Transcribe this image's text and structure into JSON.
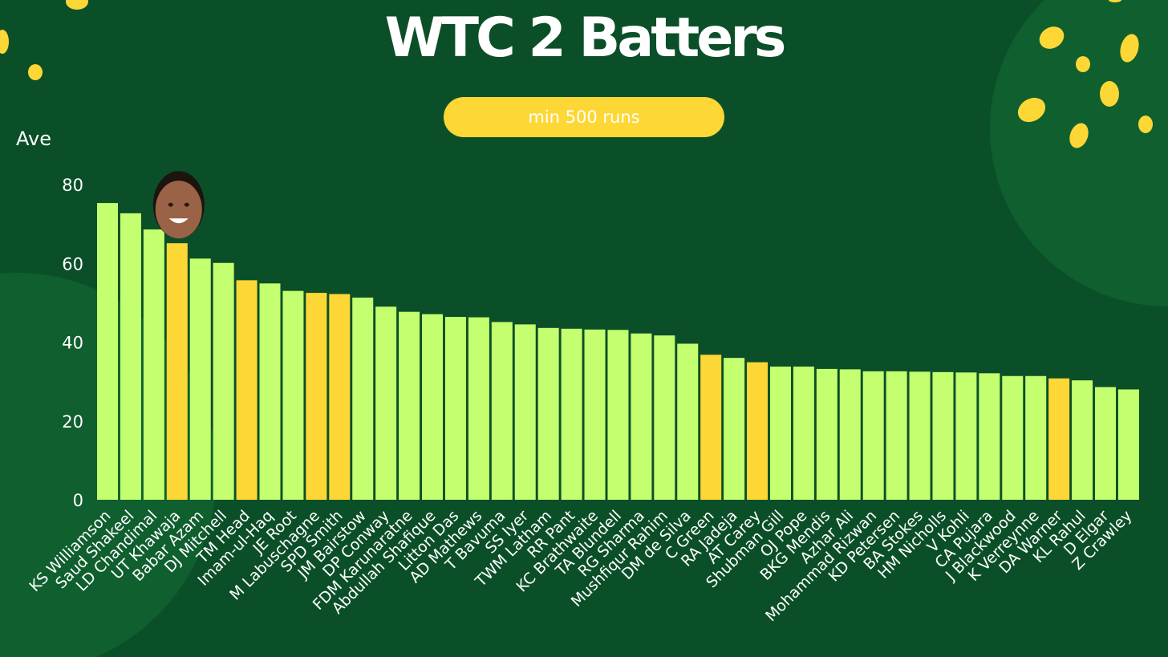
{
  "header": {
    "title": "WTC 2 Batters",
    "subtitle": "min 500 runs"
  },
  "colors": {
    "background": "#0b4f28",
    "blob": "#0f5f2f",
    "dots": "#fdd735",
    "bar_default": "#c3ff6e",
    "bar_highlight": "#fdd735",
    "text": "#ffffff"
  },
  "chart_data": {
    "type": "bar",
    "ylabel": "Ave",
    "xlabel": "",
    "ylim": [
      0,
      80
    ],
    "yticks": [
      0,
      20,
      40,
      60,
      80
    ],
    "grid": false,
    "annotation": "player photo above UT Khawaja bar",
    "categories": [
      "KS Williamson",
      "Saud Shakeel",
      "LD Chandimal",
      "UT Khawaja",
      "Babar Azam",
      "DJ Mitchell",
      "TM Head",
      "Imam-ul-Haq",
      "JE Root",
      "M Labuschagne",
      "SPD Smith",
      "JM Bairstow",
      "DP Conway",
      "FDM Karunaratne",
      "Abdullah Shafique",
      "Litton Das",
      "AD Mathews",
      "T Bavuma",
      "SS Iyer",
      "TWM Latham",
      "RR Pant",
      "KC Brathwaite",
      "TA Blundell",
      "RG Sharma",
      "Mushfiqur Rahim",
      "DM de Silva",
      "C Green",
      "RA Jadeja",
      "AT Carey",
      "Shubman Gill",
      "OJ Pope",
      "BKG Mendis",
      "Azhar Ali",
      "Mohammad Rizwan",
      "KD Petersen",
      "BA Stokes",
      "HM Nicholls",
      "V Kohli",
      "CA Pujara",
      "J Blackwood",
      "K Verreynne",
      "DA Warner",
      "KL Rahul",
      "D Elgar",
      "Z Crawley"
    ],
    "values": [
      75.3,
      72.7,
      68.6,
      65.1,
      61.2,
      60.1,
      55.7,
      54.9,
      53.0,
      52.5,
      52.2,
      51.3,
      49.0,
      47.7,
      47.1,
      46.4,
      46.3,
      45.1,
      44.5,
      43.6,
      43.4,
      43.2,
      43.1,
      42.2,
      41.7,
      39.6,
      36.8,
      36.0,
      34.9,
      33.8,
      33.8,
      33.2,
      33.1,
      32.6,
      32.6,
      32.5,
      32.4,
      32.3,
      32.1,
      31.4,
      31.4,
      30.8,
      30.3,
      28.6,
      28.0
    ],
    "highlight": [
      "UT Khawaja",
      "TM Head",
      "M Labuschagne",
      "SPD Smith",
      "C Green",
      "AT Carey",
      "DA Warner"
    ]
  }
}
